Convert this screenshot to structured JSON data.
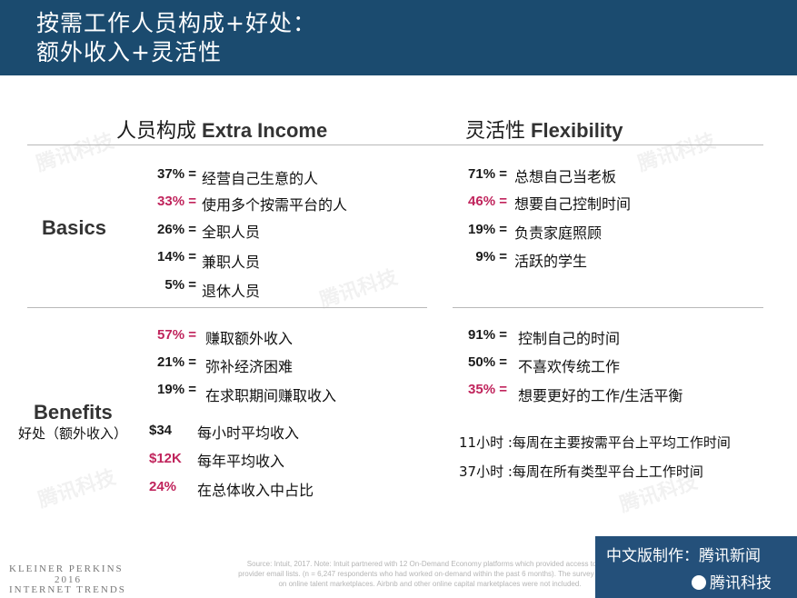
{
  "header": {
    "title_line1": "按需工作人员构成+好处：",
    "title_line2": "额外收入+灵活性"
  },
  "columns": {
    "left": {
      "cn": "人员构成",
      "en": "Extra Income"
    },
    "right": {
      "cn": "灵活性",
      "en": "Flexibility"
    }
  },
  "sections": {
    "basics": "Basics",
    "benefits": "Benefits",
    "benefits_sub": "好处（额外收入）"
  },
  "basics_left": [
    {
      "pct": "37% =",
      "text": "经营自己生意的人",
      "highlight": false
    },
    {
      "pct": "33% =",
      "text": "使用多个按需平台的人",
      "highlight": true
    },
    {
      "pct": "26% =",
      "text": "全职人员",
      "highlight": false
    },
    {
      "pct": "14% =",
      "text": "兼职人员",
      "highlight": false
    },
    {
      "pct": "5% =",
      "text": "退休人员",
      "highlight": false
    }
  ],
  "basics_right": [
    {
      "pct": "71% =",
      "text": "总想自己当老板",
      "highlight": false
    },
    {
      "pct": "46% =",
      "text": "想要自己控制时间",
      "highlight": true
    },
    {
      "pct": "19% =",
      "text": "负责家庭照顾",
      "highlight": false
    },
    {
      "pct": "9% =",
      "text": "活跃的学生",
      "highlight": false
    }
  ],
  "benefits_left": [
    {
      "pct": "57% =",
      "text": "赚取额外收入",
      "highlight": true
    },
    {
      "pct": "21% =",
      "text": "弥补经济困难",
      "highlight": false
    },
    {
      "pct": "19% =",
      "text": "在求职期间赚取收入",
      "highlight": false
    },
    {
      "pct": "$34",
      "text": "每小时平均收入",
      "highlight": false
    },
    {
      "pct": "$12K",
      "text": "每年平均收入",
      "highlight": true
    },
    {
      "pct": "24%",
      "text": "在总体收入中占比",
      "highlight": true
    }
  ],
  "benefits_right": [
    {
      "pct": "91% =",
      "text": "控制自己的时间",
      "highlight": false
    },
    {
      "pct": "50% =",
      "text": "不喜欢传统工作",
      "highlight": false
    },
    {
      "pct": "35% =",
      "text": "想要更好的工作/生活平衡",
      "highlight": true
    }
  ],
  "hours_notes": [
    "11小时 :每周在主要按需平台上平均工作时间",
    "37小时 :每周在所有类型平台上工作时间"
  ],
  "footer": {
    "kp_line1": "KLEINER PERKINS",
    "kp_line2": "2016",
    "kp_line3": "INTERNET TRENDS",
    "source": "Source: Intuit, 2017. Note: Intuit partnered with 12 On-Demand Economy platforms which provided access to their provider email lists. (n = 6,247 respondents who had worked on-demand within the past 6 months). The survey focused on online talent marketplaces. Airbnb and other online capital marketplaces were not included.",
    "brand_line1": "中文版制作：腾讯新闻",
    "brand_line2": "腾讯科技"
  },
  "watermark": "腾讯科技",
  "colors": {
    "header_bg": "#1b4b6f",
    "highlight": "#c0245c",
    "brand_bg": "#24507a"
  }
}
